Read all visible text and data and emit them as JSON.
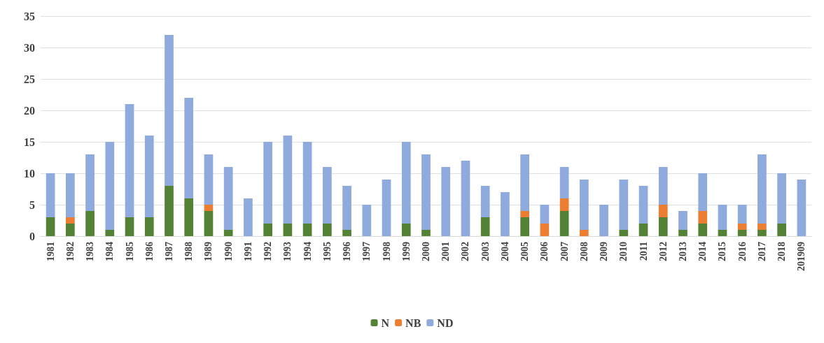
{
  "chart_data": {
    "type": "bar",
    "stacked": true,
    "categories": [
      "1981",
      "1982",
      "1983",
      "1984",
      "1985",
      "1986",
      "1987",
      "1988",
      "1989",
      "1990",
      "1991",
      "1992",
      "1993",
      "1994",
      "1995",
      "1996",
      "1997",
      "1998",
      "1999",
      "2000",
      "2001",
      "2002",
      "2003",
      "2004",
      "2005",
      "2006",
      "2007",
      "2008",
      "2009",
      "2010",
      "2011",
      "2012",
      "2013",
      "2014",
      "2015",
      "2016",
      "2017",
      "2018",
      "201909"
    ],
    "series": [
      {
        "name": "N",
        "color": "#548235",
        "values": [
          3,
          2,
          4,
          1,
          3,
          3,
          8,
          6,
          4,
          1,
          0,
          2,
          2,
          2,
          2,
          1,
          0,
          0,
          2,
          1,
          0,
          0,
          3,
          0,
          3,
          0,
          4,
          0,
          0,
          1,
          2,
          3,
          1,
          2,
          1,
          1,
          1,
          2,
          0
        ]
      },
      {
        "name": "NB",
        "color": "#ed7d31",
        "values": [
          0,
          1,
          0,
          0,
          0,
          0,
          0,
          0,
          1,
          0,
          0,
          0,
          0,
          0,
          0,
          0,
          0,
          0,
          0,
          0,
          0,
          0,
          0,
          0,
          1,
          2,
          2,
          1,
          0,
          0,
          0,
          2,
          0,
          2,
          0,
          1,
          1,
          0,
          0
        ]
      },
      {
        "name": "ND",
        "color": "#8faadc",
        "values": [
          7,
          7,
          9,
          14,
          18,
          13,
          24,
          16,
          8,
          10,
          6,
          13,
          14,
          13,
          9,
          7,
          5,
          9,
          13,
          12,
          11,
          12,
          5,
          7,
          9,
          3,
          5,
          8,
          5,
          8,
          6,
          6,
          3,
          6,
          4,
          3,
          11,
          8,
          9
        ]
      }
    ],
    "ylim": [
      0,
      35
    ],
    "yticks": [
      0,
      5,
      10,
      15,
      20,
      25,
      30,
      35
    ],
    "grid": "y",
    "legend": "bottom"
  }
}
